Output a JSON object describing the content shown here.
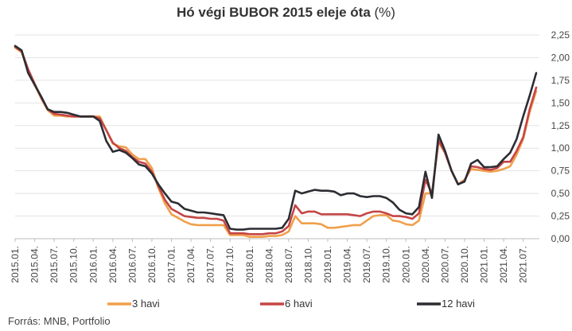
{
  "header": {
    "title": "Hó végi BUBOR 2015 eleje óta",
    "title_suffix": "(%)"
  },
  "source": "Forrás: MNB, Portfolio",
  "chart_data": {
    "type": "line",
    "title": "Hó végi BUBOR 2015 eleje óta (%)",
    "xlabel": "",
    "ylabel": "",
    "ylim": [
      0,
      2.25
    ],
    "yticks": [
      0,
      0.25,
      0.5,
      0.75,
      1.0,
      1.25,
      1.5,
      1.75,
      2.0,
      2.25
    ],
    "ytick_labels": [
      "0,00",
      "0,25",
      "0,50",
      "0,75",
      "1,00",
      "1,25",
      "1,50",
      "1,75",
      "2,00",
      "2,25"
    ],
    "y_axis_side": "right",
    "grid": true,
    "legend": "bottom",
    "x_tick_labels": [
      "2015.01.",
      "2015.04.",
      "2015.07.",
      "2015.10.",
      "2016.01.",
      "2016.04.",
      "2016.07.",
      "2016.10.",
      "2017.01.",
      "2017.04.",
      "2017.07.",
      "2017.10.",
      "2018.01.",
      "2018.04.",
      "2018.07.",
      "2018.10.",
      "2019.01.",
      "2019.04.",
      "2019.07.",
      "2019.10.",
      "2020.01.",
      "2020.04.",
      "2020.07.",
      "2020.10.",
      "2021.01.",
      "2021.04.",
      "2021.07."
    ],
    "x_start": "2015.01.",
    "x_end": "2021.08.",
    "series": [
      {
        "name": "3 havi",
        "color": "#f0a04b",
        "values": [
          2.11,
          2.06,
          1.85,
          1.7,
          1.55,
          1.42,
          1.36,
          1.36,
          1.35,
          1.35,
          1.35,
          1.35,
          1.35,
          1.35,
          1.2,
          1.05,
          1.02,
          1.01,
          0.93,
          0.88,
          0.88,
          0.78,
          0.56,
          0.39,
          0.27,
          0.23,
          0.19,
          0.16,
          0.15,
          0.15,
          0.15,
          0.15,
          0.15,
          0.04,
          0.04,
          0.04,
          0.02,
          0.02,
          0.02,
          0.03,
          0.03,
          0.04,
          0.08,
          0.25,
          0.17,
          0.17,
          0.17,
          0.16,
          0.12,
          0.12,
          0.13,
          0.14,
          0.15,
          0.15,
          0.2,
          0.25,
          0.26,
          0.26,
          0.2,
          0.19,
          0.16,
          0.15,
          0.2,
          0.5,
          0.5,
          1.07,
          0.95,
          0.75,
          0.6,
          0.65,
          0.77,
          0.76,
          0.75,
          0.74,
          0.75,
          0.77,
          0.8,
          0.93,
          1.1,
          1.4,
          1.63
        ]
      },
      {
        "name": "6 havi",
        "color": "#c64545",
        "values": [
          2.12,
          2.07,
          1.87,
          1.71,
          1.56,
          1.43,
          1.38,
          1.37,
          1.36,
          1.35,
          1.35,
          1.35,
          1.35,
          1.33,
          1.2,
          1.06,
          1.0,
          0.97,
          0.9,
          0.85,
          0.83,
          0.74,
          0.58,
          0.43,
          0.33,
          0.29,
          0.25,
          0.24,
          0.23,
          0.23,
          0.22,
          0.22,
          0.2,
          0.06,
          0.06,
          0.06,
          0.05,
          0.05,
          0.05,
          0.06,
          0.06,
          0.08,
          0.14,
          0.37,
          0.28,
          0.3,
          0.3,
          0.27,
          0.27,
          0.27,
          0.27,
          0.27,
          0.26,
          0.25,
          0.28,
          0.3,
          0.3,
          0.28,
          0.25,
          0.25,
          0.24,
          0.22,
          0.28,
          0.65,
          0.5,
          1.09,
          0.95,
          0.75,
          0.6,
          0.64,
          0.8,
          0.79,
          0.77,
          0.76,
          0.78,
          0.85,
          0.85,
          0.97,
          1.12,
          1.43,
          1.67
        ]
      },
      {
        "name": "12 havi",
        "color": "#2b2d33",
        "values": [
          2.13,
          2.08,
          1.83,
          1.7,
          1.57,
          1.43,
          1.4,
          1.4,
          1.39,
          1.37,
          1.35,
          1.35,
          1.35,
          1.3,
          1.08,
          0.96,
          0.98,
          0.95,
          0.89,
          0.82,
          0.8,
          0.72,
          0.6,
          0.5,
          0.41,
          0.39,
          0.33,
          0.31,
          0.29,
          0.29,
          0.28,
          0.27,
          0.26,
          0.11,
          0.1,
          0.1,
          0.11,
          0.11,
          0.11,
          0.11,
          0.11,
          0.12,
          0.22,
          0.53,
          0.5,
          0.52,
          0.54,
          0.53,
          0.53,
          0.52,
          0.48,
          0.5,
          0.5,
          0.47,
          0.46,
          0.47,
          0.47,
          0.45,
          0.4,
          0.32,
          0.28,
          0.27,
          0.35,
          0.74,
          0.45,
          1.15,
          0.97,
          0.75,
          0.6,
          0.63,
          0.83,
          0.87,
          0.79,
          0.79,
          0.8,
          0.88,
          0.95,
          1.1,
          1.35,
          1.58,
          1.83
        ]
      }
    ]
  }
}
